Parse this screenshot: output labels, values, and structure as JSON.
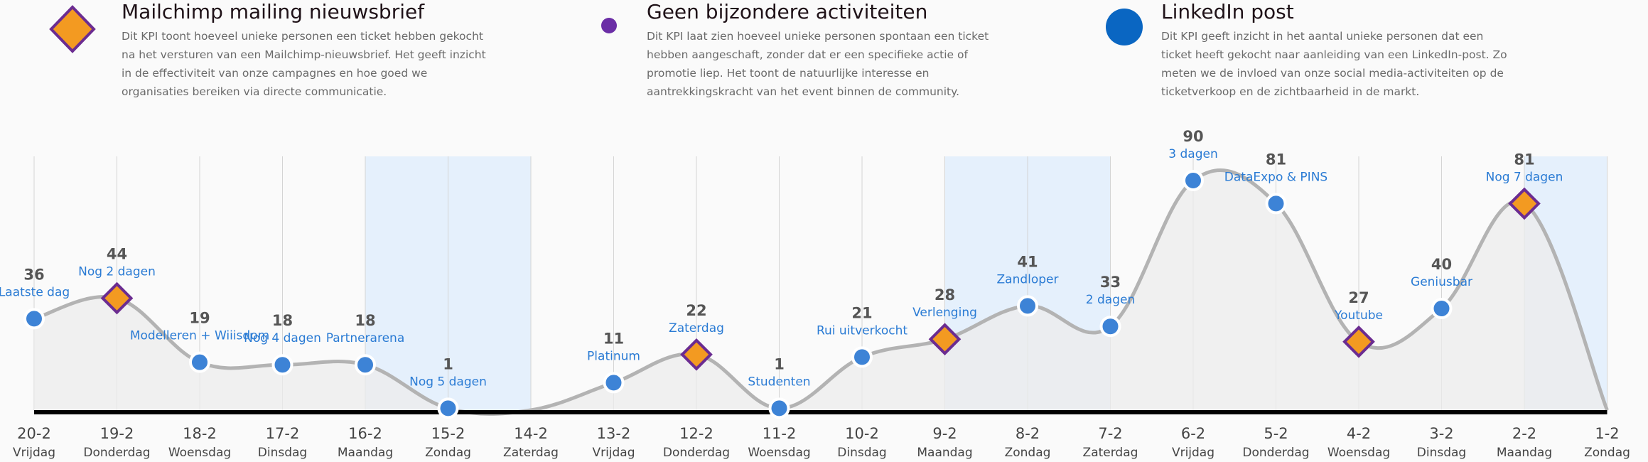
{
  "legend": [
    {
      "marker": "diamond",
      "title": "Mailchimp mailing nieuwsbrief",
      "description": "Dit KPI toont hoeveel unieke personen een ticket hebben gekocht na het versturen van een Mailchimp-nieuwsbrief. Het geeft inzicht in de effectiviteit van onze campagnes en hoe goed we organisaties bereiken via directe communicatie."
    },
    {
      "marker": "small-dot",
      "title": "Geen bijzondere activiteiten",
      "description": "Dit KPI laat zien hoeveel unieke personen spontaan een ticket hebben aangeschaft, zonder dat er een specifieke actie of promotie liep. Het toont de natuurlijke interesse en aantrekkingskracht van het event binnen de community."
    },
    {
      "marker": "big-dot",
      "title": "LinkedIn post",
      "description": "Dit KPI geeft inzicht in het aantal unieke personen dat een ticket heeft gekocht naar aanleiding van een LinkedIn-post. Zo meten we de invloed van onze social media-activiteiten op de ticketverkoop en de zichtbaarheid in de markt."
    }
  ],
  "colors": {
    "diamond_fill": "#f39a21",
    "diamond_stroke": "#6b2c91",
    "small_dot": "#6b2ea6",
    "big_dot": "#0a66c2",
    "point_fill": "#3d83d6",
    "line": "#b3b3b3",
    "area": "#ececec",
    "weekend_band": "#dcebfc",
    "annotation": "#2a7bd4",
    "value_label": "#555555",
    "baseline": "#000000"
  },
  "chart_data": {
    "type": "area",
    "grid": "vertical",
    "ylim": [
      0,
      100
    ],
    "categories": [
      "20-2",
      "19-2",
      "18-2",
      "17-2",
      "16-2",
      "15-2",
      "14-2",
      "13-2",
      "12-2",
      "11-2",
      "10-2",
      "9-2",
      "8-2",
      "7-2",
      "6-2",
      "5-2",
      "4-2",
      "3-2",
      "2-2",
      "1-2"
    ],
    "days": [
      "Vrijdag",
      "Donderdag",
      "Woensdag",
      "Dinsdag",
      "Maandag",
      "Zondag",
      "Zaterdag",
      "Vrijdag",
      "Donderdag",
      "Woensdag",
      "Dinsdag",
      "Maandag",
      "Zondag",
      "Zaterdag",
      "Vrijdag",
      "Donderdag",
      "Woensdag",
      "Dinsdag",
      "Maandag",
      "Zondag"
    ],
    "values": [
      36,
      44,
      19,
      18,
      18,
      1,
      null,
      11,
      22,
      1,
      21,
      28,
      41,
      33,
      90,
      81,
      27,
      40,
      81,
      null
    ],
    "markers": [
      "dot",
      "diamond",
      "dot",
      "dot",
      "dot",
      "dot",
      "none",
      "dot",
      "diamond",
      "dot",
      "dot",
      "diamond",
      "dot",
      "dot",
      "dot",
      "dot",
      "diamond",
      "dot",
      "diamond",
      "none"
    ],
    "annotations": [
      "Laatste dag",
      "Nog 2 dagen",
      "Modelleren + Wiiisdom",
      "Nog 4 dagen",
      "Partnerarena",
      "Nog 5 dagen",
      "",
      "Platinum",
      "Zaterdag",
      "Studenten",
      "Rui uitverkocht",
      "Verlenging",
      "Zandloper",
      "2 dagen",
      "3 dagen",
      "DataExpo & PINS",
      "Youtube",
      "Geniusbar",
      "Nog 7 dagen",
      ""
    ],
    "weekend_bands": [
      [
        "16-2",
        "14-2"
      ],
      [
        "9-2",
        "7-2"
      ],
      [
        "2-2",
        "1-2"
      ]
    ]
  }
}
